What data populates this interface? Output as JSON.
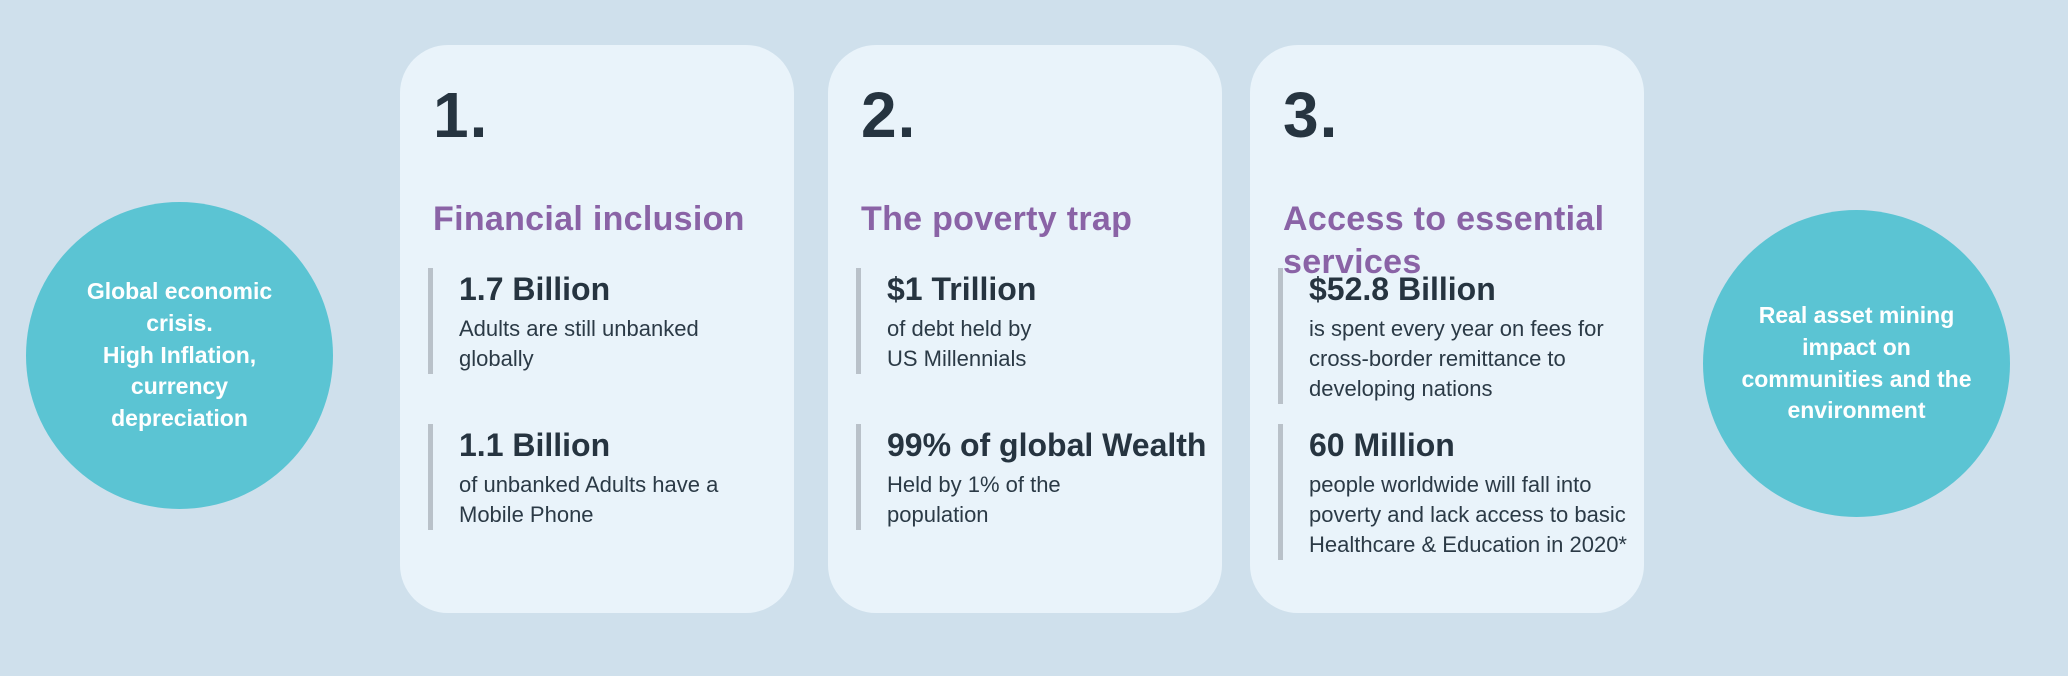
{
  "colors": {
    "page_background": "#cfe0ec",
    "card_background": "#e9f3fa",
    "circle_teal": "#5bc4d3",
    "heading_purple": "#8a63a6",
    "text_dark": "#263440",
    "stat_rule_gray": "#b9c1c9",
    "circle_text_white": "#ffffff"
  },
  "left_circle": {
    "text": "Global economic\ncrisis.\nHigh Inflation,\ncurrency\ndepreciation"
  },
  "right_circle": {
    "text": "Real asset  mining\nimpact on\ncommunities and the\nenvironment"
  },
  "cards": [
    {
      "number": "1.",
      "title": "Financial inclusion",
      "stats": [
        {
          "value": "1.7 Billion",
          "description": "Adults are still unbanked\nglobally"
        },
        {
          "value": "1.1 Billion",
          "description": "of unbanked Adults have a\nMobile Phone"
        }
      ]
    },
    {
      "number": "2.",
      "title": "The poverty trap",
      "stats": [
        {
          "value": "$1 Trillion",
          "description": "of debt held by\nUS Millennials"
        },
        {
          "value": "99% of global Wealth",
          "description": "Held by 1% of the\npopulation"
        }
      ]
    },
    {
      "number": "3.",
      "title": "Access to essential\nservices",
      "stats": [
        {
          "value": "$52.8 Billion",
          "description": "is spent every year on fees for cross-border remittance to developing nations"
        },
        {
          "value": "60 Million",
          "description": "people worldwide will fall into poverty and lack access to basic Healthcare & Education in 2020*"
        }
      ]
    }
  ]
}
